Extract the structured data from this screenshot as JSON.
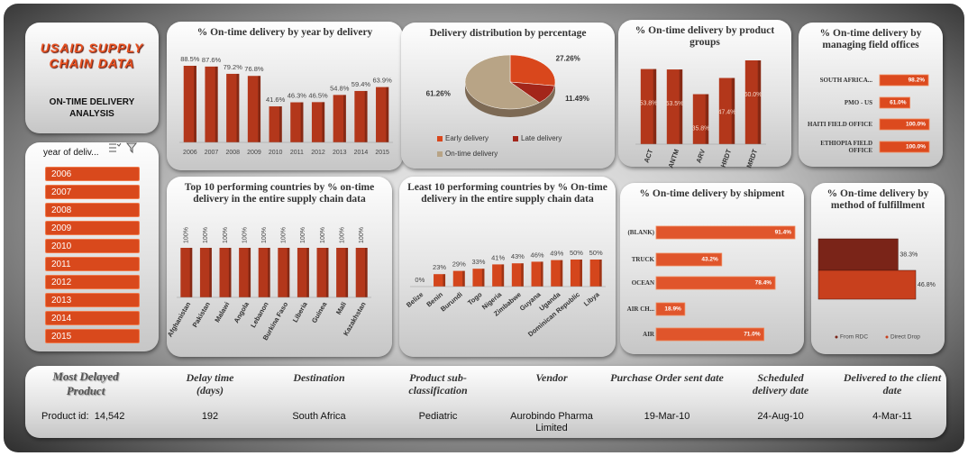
{
  "header": {
    "title": "USAID SUPPLY CHAIN DATA",
    "subtitle": "ON-TIME DELIVERY ANALYSIS"
  },
  "slicer": {
    "title": "year of deliv...",
    "items": [
      "2006",
      "2007",
      "2008",
      "2009",
      "2010",
      "2011",
      "2012",
      "2013",
      "2014",
      "2015"
    ]
  },
  "chart_data": [
    {
      "type": "bar",
      "title": "% On-time delivery by year by delivery",
      "categories": [
        "2006",
        "2007",
        "2008",
        "2009",
        "2010",
        "2011",
        "2012",
        "2013",
        "2014",
        "2015"
      ],
      "values": [
        88.5,
        87.6,
        79.2,
        76.8,
        41.6,
        46.3,
        46.5,
        54.8,
        59.4,
        63.9
      ],
      "value_labels": [
        "88.5%",
        "87.6%",
        "79.2%",
        "76.8%",
        "41.6%",
        "46.3%",
        "46.5%",
        "54.8%",
        "59.4%",
        "63.9%"
      ],
      "color": "#b3371b"
    },
    {
      "type": "pie",
      "title": "Delivery distribution by percentage",
      "categories": [
        "Early delivery",
        "Late delivery",
        "On-time delivery"
      ],
      "values": [
        27.26,
        11.49,
        61.26
      ],
      "value_labels": [
        "27.26%",
        "11.49%",
        "61.26%"
      ],
      "colors": [
        "#d9471c",
        "#a3261a",
        "#b8a486"
      ],
      "legend": "bottom"
    },
    {
      "type": "bar",
      "title": "% On-time delivery by product groups",
      "categories": [
        "ACT",
        "ANTM",
        "ARV",
        "HRDT",
        "MRDT"
      ],
      "values": [
        53.8,
        53.5,
        35.8,
        47.4,
        60.0
      ],
      "value_labels": [
        "53.8%",
        "53.5%",
        "35.8%",
        "47.4%",
        "60.0%"
      ],
      "color": "#b3371b"
    },
    {
      "type": "bar",
      "orientation": "horizontal",
      "title": "% On-time delivery by managing field offices",
      "categories": [
        "SOUTH AFRICA...",
        "PMO - US",
        "HAITI FIELD OFFICE",
        "ETHIOPIA FIELD OFFICE"
      ],
      "values": [
        98.2,
        61.0,
        100.0,
        100.0
      ],
      "value_labels": [
        "98.2%",
        "61.0%",
        "100.0%",
        "100.0%"
      ],
      "color": "#dc4a1e"
    },
    {
      "type": "bar",
      "title": "Top 10 performing countries by % on-time delivery in the entire supply chain data",
      "categories": [
        "Afghanistan",
        "Pakistan",
        "Malawi",
        "Angola",
        "Lebanon",
        "Burkina Faso",
        "Liberia",
        "Guinea",
        "Mali",
        "Kazakhstan"
      ],
      "values": [
        100,
        100,
        100,
        100,
        100,
        100,
        100,
        100,
        100,
        100
      ],
      "value_labels": [
        "100%",
        "100%",
        "100%",
        "100%",
        "100%",
        "100%",
        "100%",
        "100%",
        "100%",
        "100%"
      ],
      "color": "#b3371b"
    },
    {
      "type": "bar",
      "title": "Least 10 performing countries by % On-time delivery in the entire supply chain data",
      "categories": [
        "Belize",
        "Benin",
        "Burundi",
        "Togo",
        "Nigeria",
        "Zimbabwe",
        "Guyana",
        "Uganda",
        "Dominican Republic",
        "Libya"
      ],
      "values": [
        0,
        23,
        29,
        33,
        41,
        43,
        46,
        49,
        50,
        50
      ],
      "value_labels": [
        "0%",
        "23%",
        "29%",
        "33%",
        "41%",
        "43%",
        "46%",
        "49%",
        "50%",
        "50%"
      ],
      "color": "#d4461c"
    },
    {
      "type": "bar",
      "orientation": "horizontal",
      "title": "% On-time delivery by shipment",
      "categories": [
        "(BLANK)",
        "TRUCK",
        "OCEAN",
        "AIR CH...",
        "AIR"
      ],
      "values": [
        91.4,
        43.2,
        78.4,
        18.9,
        71.0
      ],
      "value_labels": [
        "91.4%",
        "43.2%",
        "78.4%",
        "18.9%",
        "71.0%"
      ],
      "color": "#e0552b"
    },
    {
      "type": "bar",
      "orientation": "horizontal",
      "title": "% On-time delivery by method of fulfillment",
      "series": [
        {
          "name": "From RDC",
          "color": "#7a2418",
          "values": [
            38.3
          ],
          "value_labels": [
            "38.3%"
          ]
        },
        {
          "name": "Direct Drop",
          "color": "#c8401d",
          "values": [
            46.8
          ],
          "value_labels": [
            "46.8%"
          ]
        }
      ]
    }
  ],
  "kpi": {
    "title": "Most Delayed Product",
    "product_id_label": "Product id:",
    "product_id": "14,542",
    "fields": [
      {
        "label": "Delay time (days)",
        "value": "192"
      },
      {
        "label": "Destination",
        "value": "South Africa"
      },
      {
        "label": "Product sub-classification",
        "value": "Pediatric"
      },
      {
        "label": "Vendor",
        "value": "Aurobindo Pharma Limited"
      },
      {
        "label": "Purchase Order sent date",
        "value": "19-Mar-10"
      },
      {
        "label": "Scheduled delivery date",
        "value": "24-Aug-10"
      },
      {
        "label": "Delivered to the client date",
        "value": "4-Mar-11"
      }
    ]
  }
}
